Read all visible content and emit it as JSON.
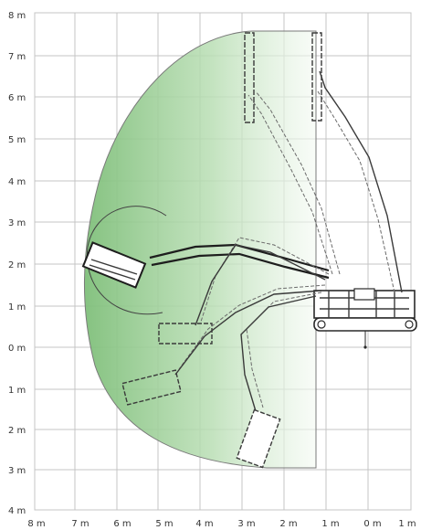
{
  "diagram": {
    "y_axis_labels": [
      "8 m",
      "7 m",
      "6 m",
      "5 m",
      "4 m",
      "3 m",
      "2 m",
      "1 m",
      "0 m",
      "1 m",
      "2 m",
      "3 m",
      "4 m"
    ],
    "x_axis_labels": [
      "8 m",
      "7 m",
      "6 m",
      "5 m",
      "4 m",
      "3 m",
      "2 m",
      "1 m",
      "0 m",
      "1 m"
    ],
    "colors": {
      "reach_zone_dark": "#7fbf7a",
      "reach_zone_light": "#f4faf3",
      "grid": "#c4c4c4",
      "outline": "#7a7a7a",
      "machine": "#2a2a2a"
    }
  }
}
